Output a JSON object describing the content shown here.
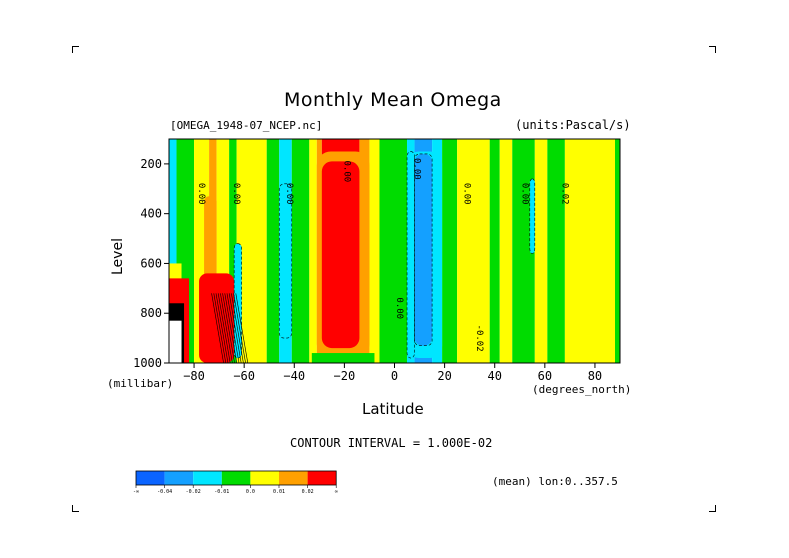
{
  "chart_data": {
    "type": "heatmap",
    "title": "Monthly Mean Omega",
    "subtitle_left": "[OMEGA_1948-07_NCEP.nc]",
    "subtitle_right": "(units:Pascal/s)",
    "xlabel": "Latitude",
    "xunit": "(degrees_north)",
    "ylabel": "Level",
    "yunit": "(millibar)",
    "xlim": [
      -90,
      90
    ],
    "ylim": [
      1000,
      100
    ],
    "x_ticks": [
      -80,
      -60,
      -40,
      -20,
      0,
      20,
      40,
      60,
      80
    ],
    "x_tick_labels": [
      "−80",
      "−60",
      "−40",
      "−20",
      "0",
      "20",
      "40",
      "60",
      "80"
    ],
    "y_ticks": [
      200,
      400,
      600,
      800,
      1000
    ],
    "y_tick_labels": [
      "200",
      "400",
      "600",
      "800",
      "1000"
    ],
    "contour_interval": "CONTOUR INTERVAL = 1.000E-02",
    "averaging": "(mean) lon:0..357.5",
    "contour_labels": [
      "0.00",
      "0.00",
      "0.00",
      "0.00",
      "0.00",
      "0.00",
      "0.00",
      "0.02",
      "-0.02",
      "0.00"
    ],
    "levels": [
      {
        "label": "-∞",
        "color": "#0a64ff"
      },
      {
        "label": "-0.04",
        "color": "#14a0ff"
      },
      {
        "label": "-0.02",
        "color": "#00e6ff"
      },
      {
        "label": "-0.01",
        "color": "#00dc00"
      },
      {
        "label": "0.0",
        "color": "#ffff00"
      },
      {
        "label": "0.01",
        "color": "#ffa000"
      },
      {
        "label": "0.02",
        "color": "#ff0000"
      },
      {
        "label": "∞",
        "color": ""
      }
    ],
    "bands": [
      {
        "x0": -90,
        "x1": -87,
        "level": 2
      },
      {
        "x0": -87,
        "x1": -80,
        "level": 3
      },
      {
        "x0": -80,
        "x1": -74,
        "level": 4
      },
      {
        "x0": -74,
        "x1": -71,
        "level": 5
      },
      {
        "x0": -71,
        "x1": -66,
        "level": 4
      },
      {
        "x0": -66,
        "x1": -63,
        "level": 3
      },
      {
        "x0": -63,
        "x1": -51,
        "level": 4
      },
      {
        "x0": -51,
        "x1": -46,
        "level": 3
      },
      {
        "x0": -46,
        "x1": -41,
        "level": 2
      },
      {
        "x0": -41,
        "x1": -34,
        "level": 3
      },
      {
        "x0": -34,
        "x1": -31,
        "level": 4
      },
      {
        "x0": -31,
        "x1": -29,
        "level": 5
      },
      {
        "x0": -29,
        "x1": -14,
        "level": 6
      },
      {
        "x0": -14,
        "x1": -10,
        "level": 5
      },
      {
        "x0": -10,
        "x1": -6,
        "level": 4
      },
      {
        "x0": -6,
        "x1": 5,
        "level": 3
      },
      {
        "x0": 5,
        "x1": 8,
        "level": 2
      },
      {
        "x0": 8,
        "x1": 15,
        "level": 1
      },
      {
        "x0": 15,
        "x1": 19,
        "level": 2
      },
      {
        "x0": 19,
        "x1": 25,
        "level": 3
      },
      {
        "x0": 25,
        "x1": 38,
        "level": 4
      },
      {
        "x0": 38,
        "x1": 42,
        "level": 3
      },
      {
        "x0": 42,
        "x1": 47,
        "level": 4
      },
      {
        "x0": 47,
        "x1": 56,
        "level": 3
      },
      {
        "x0": 56,
        "x1": 61,
        "level": 4
      },
      {
        "x0": 61,
        "x1": 68,
        "level": 3
      },
      {
        "x0": 68,
        "x1": 88,
        "level": 4
      },
      {
        "x0": 88,
        "x1": 90,
        "level": 3
      }
    ]
  }
}
